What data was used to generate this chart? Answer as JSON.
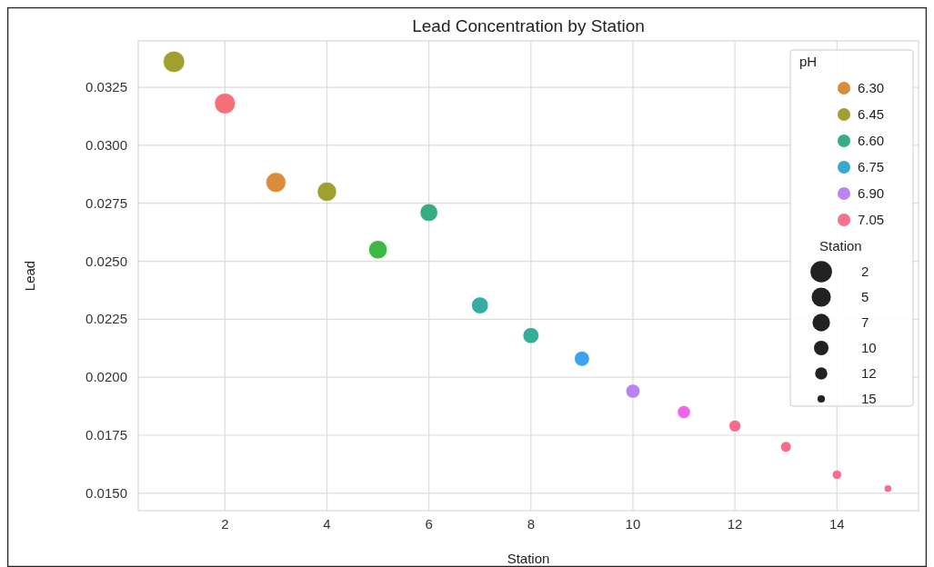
{
  "chart_data": {
    "type": "bubble",
    "title": "Lead Concentration by Station",
    "xlabel": "Station",
    "ylabel": "Lead",
    "x": [
      1,
      2,
      3,
      4,
      5,
      6,
      7,
      8,
      9,
      10,
      11,
      12,
      13,
      14,
      15
    ],
    "series": [
      {
        "values": [
          0.0336,
          0.0318,
          0.0284,
          0.028,
          0.0255,
          0.0271,
          0.0231,
          0.0218,
          0.0208,
          0.0194,
          0.0185,
          0.0179,
          0.017,
          0.0158,
          0.0152
        ],
        "sizes": [
          1,
          0.94,
          0.87,
          0.81,
          0.75,
          0.69,
          0.62,
          0.56,
          0.5,
          0.44,
          0.37,
          0.31,
          0.25,
          0.19,
          0.12
        ],
        "colors": [
          "#a0a030",
          "#f5707a",
          "#d98c3a",
          "#a0a030",
          "#3cb843",
          "#35ad80",
          "#36ada4",
          "#36ad96",
          "#3ba3ec",
          "#b884f5",
          "#f065e8",
          "#f56c8c",
          "#f56c8c",
          "#f56c8c",
          "#f56c8c"
        ]
      },
      {
        "name": "6.30",
        "color": "#d98c3a",
        "values": [
          null,
          null,
          null,
          null,
          null,
          null,
          null,
          null,
          null,
          null,
          null,
          null,
          null,
          null,
          null
        ]
      },
      {
        "name": "6.45",
        "color": "#a0a030",
        "values": [
          null,
          null,
          null,
          null,
          null,
          null,
          null,
          null,
          null,
          null,
          null,
          null,
          null,
          null,
          null
        ]
      },
      {
        "name": "6.60",
        "color": "#36ad8a",
        "values": [
          null,
          null,
          null,
          null,
          null,
          null,
          null,
          null,
          null,
          null,
          null,
          null,
          null,
          null,
          null
        ]
      },
      {
        "name": "6.75",
        "color": "#39a7d0",
        "values": [
          null,
          null,
          null,
          null,
          null,
          null,
          null,
          null,
          null,
          null,
          null,
          null,
          null,
          null,
          null
        ]
      },
      {
        "name": "6.90",
        "color": "#bb83f4",
        "values": [
          null,
          null,
          null,
          null,
          null,
          null,
          null,
          null,
          null,
          null,
          null,
          null,
          null,
          null,
          null
        ]
      },
      {
        "name": "7.05",
        "color": "#f5708a",
        "values": [
          null,
          null,
          null,
          null,
          null,
          null,
          null,
          null,
          null,
          null,
          null,
          null,
          null,
          null,
          null
        ]
      }
    ],
    "legend_title": "pH",
    "annotations": [
      "Station",
      "2",
      "5",
      "7",
      "10",
      "12",
      "15"
    ],
    "xlim": [
      0.3,
      15.6
    ],
    "xticks": [
      2,
      4,
      6,
      8,
      10,
      12,
      14
    ],
    "ylim": [
      0.01425,
      0.0345
    ],
    "yticks": [
      {
        "value": 0.015,
        "label": "0.0150"
      },
      {
        "value": 0.0175,
        "label": "0.0175"
      },
      {
        "value": 0.02,
        "label": "0.0200"
      },
      {
        "value": 0.0225,
        "label": "0.0225"
      },
      {
        "value": 0.025,
        "label": "0.0250"
      },
      {
        "value": 0.0275,
        "label": "0.0275"
      },
      {
        "value": 0.03,
        "label": "0.0300"
      },
      {
        "value": 0.0325,
        "label": "0.0325"
      }
    ],
    "grid": true,
    "legend": "top right",
    "marker": "circle"
  }
}
